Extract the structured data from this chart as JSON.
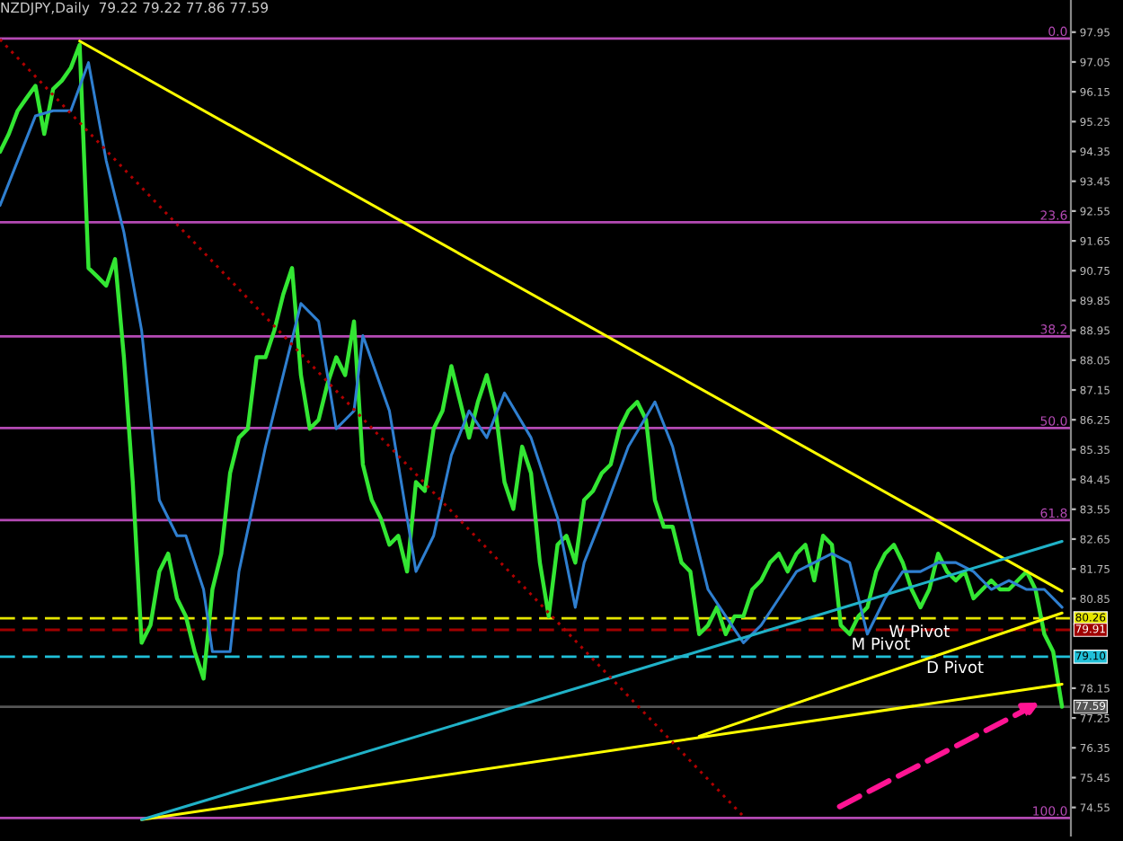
{
  "chart_data": {
    "type": "line",
    "title": "NZDJPY,Daily  79.22 79.22 77.86 77.59",
    "categories": [
      null,
      null,
      null,
      null,
      null,
      null,
      null,
      null,
      null,
      null,
      null,
      null,
      null,
      null,
      null,
      null,
      null,
      null,
      null,
      null,
      null,
      null,
      null,
      null,
      null,
      null,
      null,
      null,
      null,
      null,
      null,
      null,
      null,
      null,
      null,
      null,
      null,
      null,
      null,
      null,
      null,
      null,
      null,
      null,
      null,
      null,
      null,
      null,
      null,
      null,
      null,
      null,
      null,
      null,
      null,
      null,
      null,
      null,
      null,
      null,
      null,
      null,
      null,
      null,
      null,
      null,
      null,
      null,
      null,
      null,
      null,
      null,
      null,
      null,
      null,
      null,
      null,
      null,
      null,
      null,
      null,
      null,
      null,
      null,
      null,
      null,
      null,
      null,
      null,
      null,
      null,
      null,
      null,
      null,
      null,
      null,
      null,
      null,
      null,
      null,
      null,
      null,
      null,
      null,
      null,
      null,
      null,
      null,
      null,
      null,
      null,
      null,
      null,
      null,
      null,
      null,
      null,
      null,
      null,
      null,
      null
    ],
    "series": [
      {
        "color": "#33e633",
        "values": [
          94.34,
          94.88,
          95.58,
          95.96,
          96.33,
          94.88,
          96.23,
          96.49,
          96.87,
          97.57,
          90.83,
          90.57,
          90.3,
          91.1,
          88.14,
          84.37,
          79.52,
          80.05,
          81.67,
          82.21,
          80.86,
          80.32,
          79.25,
          78.44,
          81.13,
          82.21,
          84.64,
          85.71,
          85.98,
          88.14,
          88.14,
          88.95,
          90.03,
          90.83,
          87.6,
          85.98,
          86.25,
          87.33,
          88.14,
          87.6,
          89.22,
          84.9,
          83.83,
          83.29,
          82.48,
          82.75,
          81.67,
          84.37,
          84.1,
          85.98,
          86.52,
          87.87,
          86.79,
          85.71,
          86.79,
          87.6,
          86.52,
          84.37,
          83.56,
          85.44,
          84.64,
          81.94,
          80.32,
          82.48,
          82.75,
          81.94,
          83.83,
          84.1,
          84.64,
          84.9,
          85.98,
          86.52,
          86.79,
          86.25,
          83.83,
          83.02,
          83.02,
          81.94,
          81.67,
          79.78,
          80.05,
          80.59,
          79.78,
          80.32,
          80.32,
          81.13,
          81.4,
          81.94,
          82.21,
          81.67,
          82.21,
          82.48,
          81.4,
          82.75,
          82.48,
          80.05,
          79.78,
          80.32,
          80.59,
          81.67,
          82.21,
          82.48,
          81.94,
          81.13,
          80.59,
          81.13,
          82.21,
          81.67,
          81.4,
          81.67,
          80.86,
          81.13,
          81.4,
          81.13,
          81.13,
          81.4,
          81.67,
          81.13,
          79.78,
          79.25,
          77.59
        ]
      },
      {
        "color": "#2f7fd0",
        "values": [
          92.72,
          null,
          94.07,
          null,
          95.42,
          null,
          95.58,
          null,
          95.58,
          null,
          97.03,
          null,
          94.07,
          null,
          91.91,
          null,
          88.95,
          null,
          83.83,
          null,
          82.75,
          82.75,
          null,
          81.13,
          79.25,
          null,
          79.25,
          81.67,
          null,
          null,
          85.44,
          null,
          87.6,
          null,
          89.76,
          null,
          89.22,
          null,
          85.98,
          null,
          86.52,
          88.79,
          null,
          null,
          86.52,
          null,
          null,
          81.67,
          null,
          82.75,
          null,
          85.18,
          null,
          86.52,
          null,
          85.71,
          null,
          87.06,
          null,
          null,
          85.71,
          null,
          null,
          83.29,
          null,
          80.59,
          81.94,
          null,
          83.29,
          null,
          null,
          85.44,
          null,
          null,
          86.79,
          null,
          85.44,
          null,
          83.29,
          null,
          81.13,
          null,
          80.32,
          null,
          79.52,
          null,
          80.05,
          null,
          80.86,
          null,
          81.67,
          null,
          81.94,
          null,
          82.21,
          null,
          81.94,
          null,
          79.78,
          null,
          80.86,
          null,
          81.67,
          null,
          81.67,
          null,
          81.94,
          null,
          81.94,
          null,
          81.67,
          null,
          81.13,
          null,
          81.4,
          null,
          81.13,
          null,
          81.13,
          null,
          80.59
        ]
      },
      {
        "color": "#ffff00",
        "values": [
          null,
          null,
          null,
          null,
          null,
          null,
          null,
          null,
          null,
          97.68,
          null,
          null,
          null,
          null,
          null,
          null,
          null,
          null,
          null,
          null,
          null,
          null,
          null,
          null,
          null,
          null,
          null,
          null,
          null,
          null,
          null,
          null,
          null,
          null,
          null,
          null,
          null,
          null,
          null,
          null,
          null,
          null,
          null,
          null,
          null,
          null,
          null,
          null,
          null,
          null,
          null,
          null,
          null,
          null,
          null,
          null,
          null,
          null,
          null,
          null,
          null,
          null,
          null,
          null,
          null,
          null,
          null,
          null,
          null,
          null,
          null,
          null,
          null,
          null,
          null,
          null,
          null,
          null,
          null,
          null,
          null,
          null,
          null,
          null,
          null,
          null,
          null,
          null,
          null,
          null,
          null,
          null,
          null,
          null,
          null,
          null,
          null,
          null,
          null,
          null,
          null,
          null,
          null,
          null,
          null,
          null,
          null,
          null,
          null,
          null,
          null,
          null,
          null,
          null,
          null,
          null,
          null,
          null,
          null,
          null,
          81.08
        ]
      },
      {
        "color": "#ffff00",
        "values": [
          null,
          null,
          null,
          null,
          null,
          null,
          null,
          null,
          null,
          null,
          null,
          null,
          null,
          null,
          null,
          null,
          74.18,
          null,
          null,
          null,
          null,
          null,
          null,
          null,
          null,
          null,
          null,
          null,
          null,
          null,
          null,
          null,
          null,
          null,
          null,
          null,
          null,
          null,
          null,
          null,
          null,
          null,
          null,
          null,
          null,
          null,
          null,
          null,
          null,
          null,
          null,
          null,
          null,
          null,
          null,
          null,
          null,
          null,
          null,
          null,
          null,
          null,
          null,
          null,
          null,
          null,
          null,
          null,
          null,
          null,
          null,
          null,
          null,
          null,
          null,
          null,
          null,
          null,
          null,
          null,
          null,
          null,
          null,
          null,
          null,
          null,
          null,
          null,
          null,
          null,
          null,
          null,
          null,
          null,
          null,
          null,
          null,
          null,
          null,
          null,
          null,
          null,
          null,
          null,
          null,
          null,
          null,
          null,
          null,
          null,
          null,
          null,
          null,
          null,
          null,
          null,
          null,
          null,
          null,
          null,
          78.27
        ]
      },
      {
        "color": "#ffff00",
        "values": [
          null,
          null,
          null,
          null,
          null,
          null,
          null,
          null,
          null,
          null,
          null,
          null,
          null,
          null,
          null,
          null,
          null,
          null,
          null,
          null,
          null,
          null,
          null,
          null,
          null,
          null,
          null,
          null,
          null,
          null,
          null,
          null,
          null,
          null,
          null,
          null,
          null,
          null,
          null,
          null,
          null,
          null,
          null,
          null,
          null,
          null,
          null,
          null,
          null,
          null,
          null,
          null,
          null,
          null,
          null,
          null,
          null,
          null,
          null,
          null,
          null,
          null,
          null,
          null,
          null,
          null,
          null,
          null,
          null,
          null,
          null,
          null,
          null,
          null,
          null,
          null,
          null,
          null,
          null,
          76.7,
          null,
          null,
          null,
          null,
          null,
          null,
          null,
          null,
          null,
          null,
          null,
          null,
          null,
          null,
          null,
          null,
          null,
          null,
          null,
          null,
          null,
          null,
          null,
          null,
          null,
          null,
          null,
          null,
          null,
          null,
          null,
          null,
          null,
          null,
          null,
          null,
          null,
          null,
          null,
          null,
          80.42
        ]
      },
      {
        "color": "#20b2c8",
        "values": [
          null,
          null,
          null,
          null,
          null,
          null,
          null,
          null,
          null,
          null,
          null,
          null,
          null,
          null,
          null,
          null,
          74.18,
          null,
          null,
          null,
          null,
          null,
          null,
          null,
          null,
          null,
          null,
          null,
          null,
          null,
          null,
          null,
          null,
          null,
          null,
          null,
          null,
          null,
          null,
          null,
          null,
          null,
          null,
          null,
          null,
          null,
          null,
          null,
          null,
          null,
          null,
          null,
          null,
          null,
          null,
          null,
          null,
          null,
          null,
          null,
          null,
          null,
          null,
          null,
          null,
          null,
          null,
          null,
          null,
          null,
          null,
          null,
          null,
          null,
          null,
          null,
          null,
          null,
          null,
          null,
          null,
          null,
          null,
          null,
          null,
          null,
          null,
          null,
          null,
          null,
          null,
          null,
          null,
          null,
          null,
          null,
          null,
          null,
          null,
          null,
          null,
          null,
          null,
          null,
          null,
          null,
          null,
          null,
          null,
          null,
          null,
          null,
          null,
          null,
          null,
          null,
          null,
          null,
          null,
          null,
          82.58
        ]
      },
      {
        "color": "#b00000",
        "line_style": "dotted",
        "values": [
          97.73,
          null,
          null,
          null,
          null,
          null,
          null,
          null,
          null,
          null,
          null,
          null,
          null,
          null,
          null,
          null,
          null,
          null,
          null,
          null,
          null,
          null,
          null,
          null,
          null,
          null,
          null,
          null,
          null,
          null,
          null,
          null,
          null,
          null,
          null,
          null,
          null,
          null,
          null,
          null,
          null,
          null,
          null,
          null,
          null,
          null,
          null,
          null,
          null,
          null,
          null,
          null,
          null,
          null,
          null,
          null,
          null,
          null,
          null,
          null,
          null,
          null,
          null,
          null,
          null,
          null,
          null,
          null,
          null,
          null,
          null,
          null,
          null,
          null,
          null,
          null,
          null,
          null,
          null,
          null,
          null,
          null,
          null,
          null,
          74.28,
          null,
          null,
          null,
          null,
          null,
          null,
          null,
          null,
          null,
          null,
          null,
          null,
          null,
          null,
          null,
          null,
          null,
          null,
          null,
          null,
          null,
          null,
          null,
          null,
          null,
          null,
          null,
          null,
          null,
          null,
          null,
          null,
          null,
          null,
          null,
          null
        ]
      }
    ],
    "ylim": [
      73.7,
      98.92
    ],
    "yticks": [
      74.55,
      75.45,
      76.35,
      77.25,
      78.15,
      80.85,
      81.75,
      82.65,
      83.55,
      84.45,
      85.35,
      86.25,
      87.15,
      88.05,
      88.95,
      89.85,
      90.75,
      91.65,
      92.55,
      93.45,
      94.35,
      95.25,
      96.15,
      97.05,
      97.95
    ],
    "ref_lines": [
      {
        "axis": "y",
        "value": 97.76,
        "color": "#b44ab4"
      },
      {
        "axis": "y",
        "value": 92.21,
        "color": "#b44ab4"
      },
      {
        "axis": "y",
        "value": 88.77,
        "color": "#b44ab4"
      },
      {
        "axis": "y",
        "value": 86.0,
        "color": "#b44ab4"
      },
      {
        "axis": "y",
        "value": 83.22,
        "color": "#b44ab4"
      },
      {
        "axis": "y",
        "value": 74.23,
        "color": "#b44ab4"
      },
      {
        "axis": "y",
        "value": 80.26,
        "label": "80.26",
        "color": "#e6e600",
        "line_style": "dashed"
      },
      {
        "axis": "y",
        "value": 79.91,
        "label": "79.91",
        "color": "#a00000",
        "line_style": "dashed"
      },
      {
        "axis": "y",
        "value": 79.1,
        "label": "79.10",
        "color": "#20c0d8",
        "line_style": "dashed"
      },
      {
        "axis": "y",
        "value": 77.59,
        "label": "77.59",
        "color": "#555555",
        "line_style": "solid"
      }
    ],
    "annotations": [
      {
        "text": "0.0",
        "y": 97.76
      },
      {
        "text": "23.6",
        "y": 92.21
      },
      {
        "text": "38.2",
        "y": 88.77
      },
      {
        "text": "50.0",
        "y": 86.0
      },
      {
        "text": "61.8",
        "y": 83.22
      },
      {
        "text": "100.0",
        "y": 74.23
      },
      "M Pivot",
      "W Pivot",
      "D Pivot"
    ],
    "grid": false,
    "legend": false
  }
}
